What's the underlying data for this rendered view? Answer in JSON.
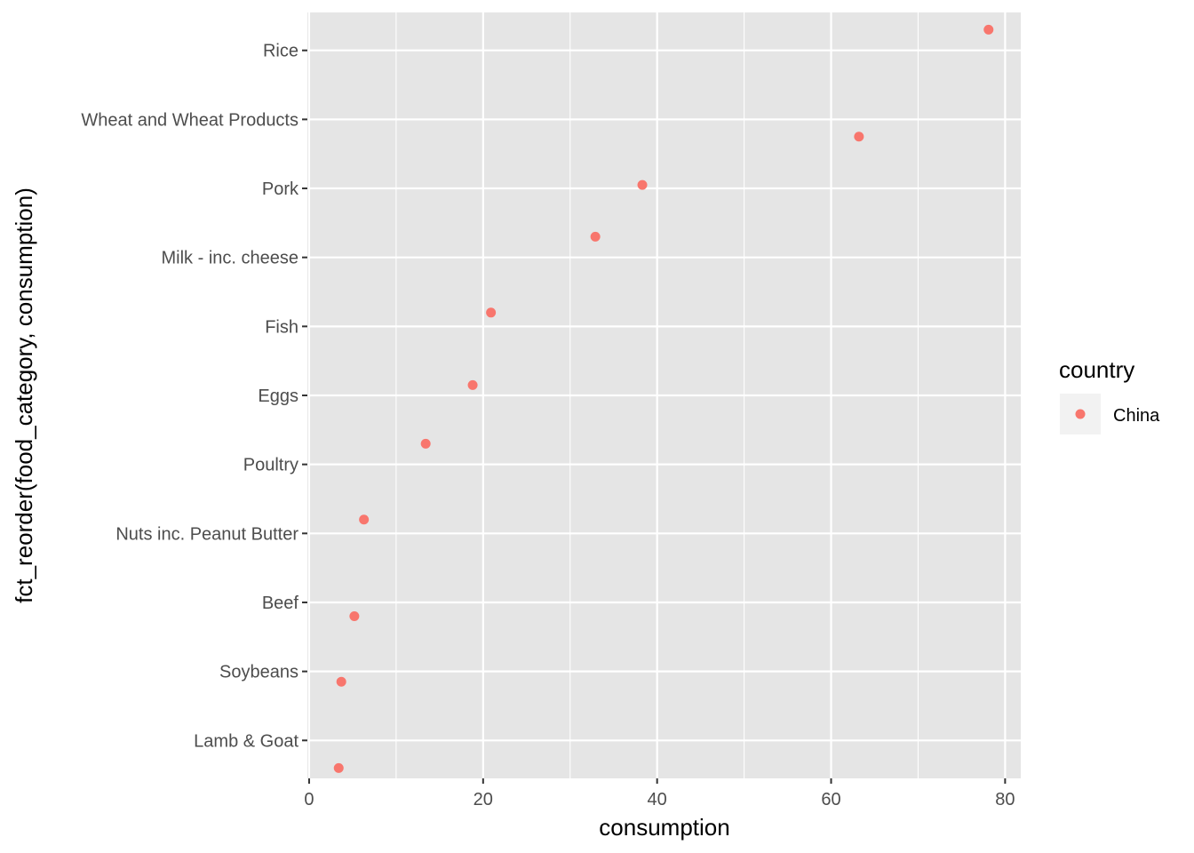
{
  "chart_data": {
    "type": "scatter",
    "title": "",
    "xlabel": "consumption",
    "ylabel": "fct_reorder(food_category, consumption)",
    "categories": [
      "Lamb & Goat",
      "Soybeans",
      "Beef",
      "Nuts inc. Peanut Butter",
      "Poultry",
      "Eggs",
      "Fish",
      "Milk - inc. cheese",
      "Pork",
      "Wheat and Wheat Products",
      "Rice"
    ],
    "points": [
      {
        "category": "Lamb & Goat",
        "x": 3.4,
        "y": 0.6
      },
      {
        "category": "Soybeans",
        "x": 3.7,
        "y": 1.85
      },
      {
        "category": "Beef",
        "x": 5.2,
        "y": 2.8
      },
      {
        "category": "Nuts inc. Peanut Butter",
        "x": 6.3,
        "y": 4.2
      },
      {
        "category": "Poultry",
        "x": 13.4,
        "y": 5.3
      },
      {
        "category": "Eggs",
        "x": 18.8,
        "y": 6.15
      },
      {
        "category": "Fish",
        "x": 20.9,
        "y": 7.2
      },
      {
        "category": "Milk - inc. cheese",
        "x": 32.9,
        "y": 8.3
      },
      {
        "category": "Pork",
        "x": 38.3,
        "y": 9.05
      },
      {
        "category": "Wheat and Wheat Products",
        "x": 63.2,
        "y": 9.75
      },
      {
        "category": "Rice",
        "x": 78.1,
        "y": 11.3
      }
    ],
    "xlim": [
      -0.2,
      81.8
    ],
    "ylim": [
      0.45,
      11.55
    ],
    "x_ticks": [
      0,
      20,
      40,
      60,
      80
    ],
    "x_tick_labels": [
      "0",
      "20",
      "40",
      "60",
      "80"
    ],
    "x_minor_ticks": [
      10,
      30,
      50,
      70
    ],
    "grid": true,
    "legend": {
      "title": "country",
      "placement": "right",
      "entries": [
        {
          "name": "China",
          "color": "#f8766d"
        }
      ]
    },
    "colors": {
      "panel": "#e5e5e5",
      "grid": "#ffffff",
      "point": "#f8766d",
      "legend_key": "#f2f2f2"
    }
  }
}
